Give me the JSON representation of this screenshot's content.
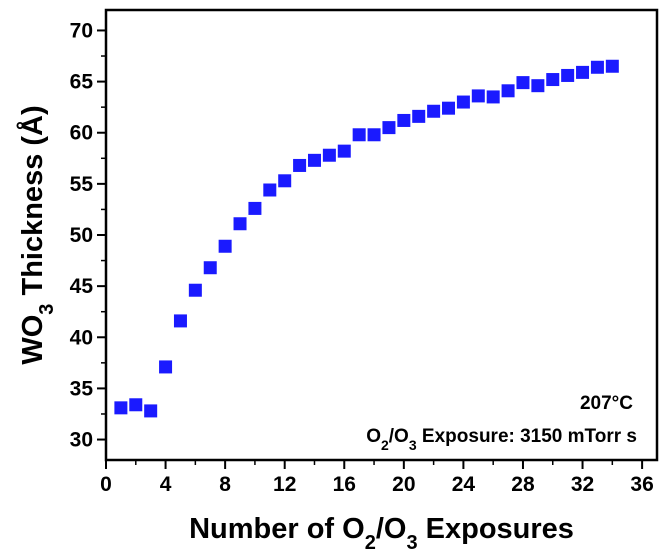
{
  "chart_data": {
    "type": "scatter",
    "xlabel": "Number of O2/O3 Exposures",
    "ylabel": "WO3 Thickness (Å)",
    "xlim": [
      0,
      37
    ],
    "ylim": [
      28,
      72
    ],
    "xticks": [
      0,
      4,
      8,
      12,
      16,
      20,
      24,
      28,
      32,
      36
    ],
    "yticks": [
      30,
      35,
      40,
      45,
      50,
      55,
      60,
      65,
      70
    ],
    "grid": false,
    "marker": "square",
    "series": [
      {
        "color": "#1a1aff",
        "x": [
          1,
          2,
          3,
          4,
          5,
          6,
          7,
          8,
          9,
          10,
          11,
          12,
          13,
          14,
          15,
          16,
          17,
          18,
          19,
          20,
          21,
          22,
          23,
          24,
          25,
          26,
          27,
          28,
          29,
          30,
          31,
          32,
          33,
          34
        ],
        "y": [
          33.1,
          33.4,
          32.8,
          37.1,
          41.6,
          44.6,
          46.8,
          48.9,
          51.1,
          52.6,
          54.4,
          55.3,
          56.8,
          57.3,
          57.8,
          58.2,
          59.8,
          59.8,
          60.5,
          61.2,
          61.6,
          62.1,
          62.4,
          63.0,
          63.6,
          63.5,
          64.1,
          64.9,
          64.6,
          65.2,
          65.6,
          65.9,
          66.4,
          66.5
        ]
      }
    ],
    "annotations": [
      "207°C",
      "O2/O3 Exposure: 3150 mTorr s"
    ]
  }
}
